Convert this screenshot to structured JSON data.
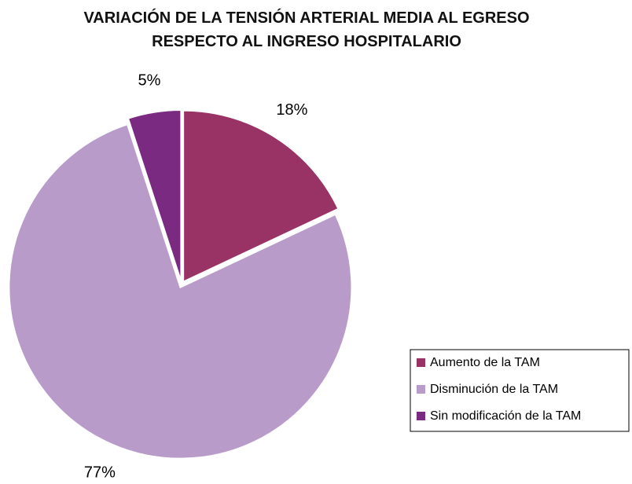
{
  "chart_data": {
    "type": "pie",
    "title": "VARIACIÓN DE LA TENSIÓN ARTERIAL MEDIA AL EGRESO RESPECTO AL INGRESO HOSPITALARIO",
    "categories": [
      "Aumento de la TAM",
      "Disminución de la TAM",
      "Sin modificación de la TAM"
    ],
    "values": [
      18,
      77,
      5
    ],
    "value_labels": [
      "18%",
      "77%",
      "5%"
    ],
    "colors": [
      "#993366",
      "#b89bc9",
      "#7b2a82"
    ],
    "legend": "right"
  }
}
